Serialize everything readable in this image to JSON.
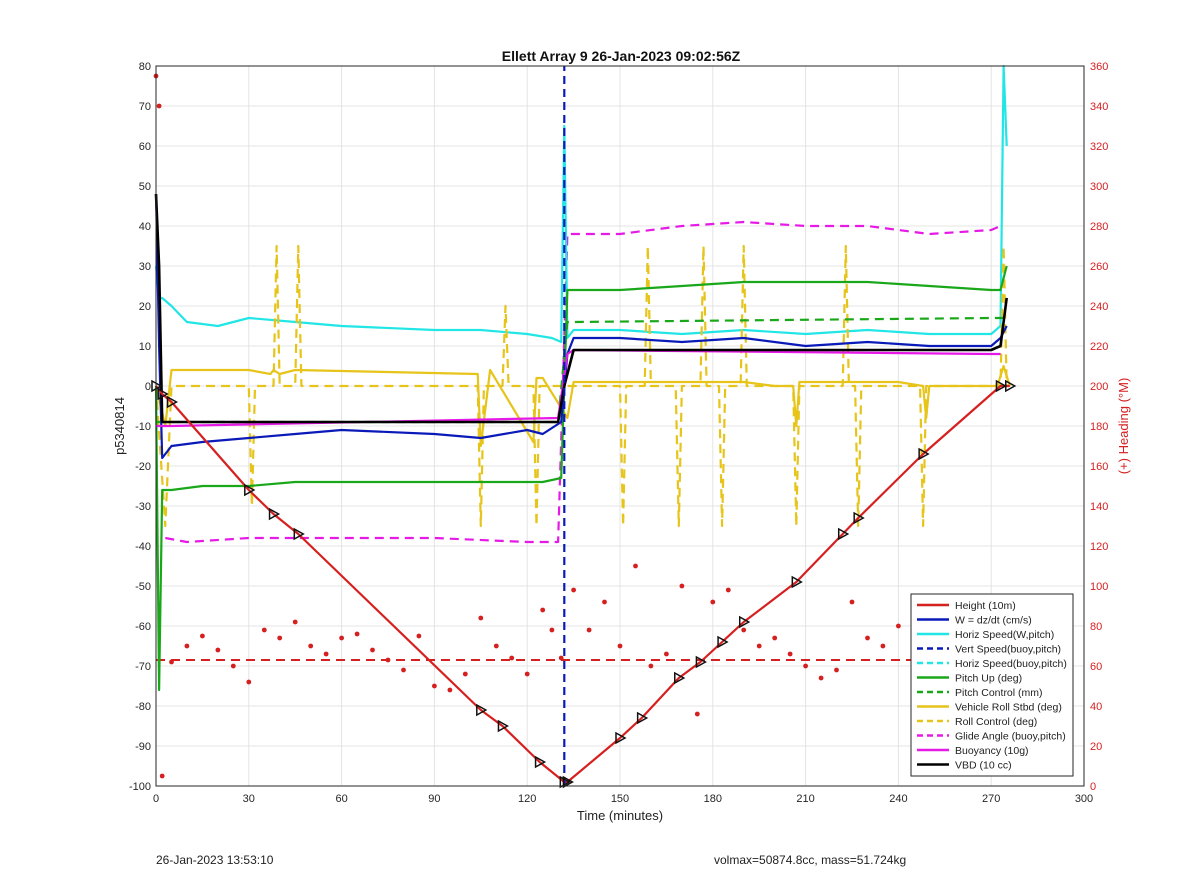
{
  "footer": {
    "left": "26-Jan-2023 13:53:10",
    "right": "volmax=50874.8cc, mass=51.724kg"
  },
  "chart_data": {
    "type": "line",
    "title": "Ellett Array 9 26-Jan-2023 09:02:56Z",
    "xlabel": "Time (minutes)",
    "ylabel": "p5340814",
    "y2label": "(+) Heading (°M)",
    "xlim": [
      0,
      300
    ],
    "ylim": [
      -100,
      80
    ],
    "y2lim": [
      0,
      360
    ],
    "xticks": [
      0,
      30,
      60,
      90,
      120,
      150,
      180,
      210,
      240,
      270,
      300
    ],
    "yticks": [
      -100,
      -90,
      -80,
      -70,
      -60,
      -50,
      -40,
      -30,
      -20,
      -10,
      0,
      10,
      20,
      30,
      40,
      50,
      60,
      70,
      80
    ],
    "y2ticks": [
      0,
      20,
      40,
      60,
      80,
      100,
      120,
      140,
      160,
      180,
      200,
      220,
      240,
      260,
      280,
      300,
      320,
      340,
      360
    ],
    "grid": true,
    "legend_position": "bottom-right",
    "colors": {
      "height": "#d62020",
      "w": "#0a1ab8",
      "horiz": "#22e6e6",
      "pitch": "#1aa81a",
      "roll": "#e6c41a",
      "glide": "#e61ae6",
      "buoyancy": "#e61ae6",
      "vbd": "#000000",
      "right_axis": "#d62020"
    },
    "legend": [
      {
        "label": "Height (10m)",
        "color": "#d62020",
        "dash": false
      },
      {
        "label": "W = dz/dt (cm/s)",
        "color": "#0a1ab8",
        "dash": false
      },
      {
        "label": "Horiz Speed(W,pitch)",
        "color": "#22e6e6",
        "dash": false
      },
      {
        "label": "Vert Speed(buoy,pitch)",
        "color": "#0a1ab8",
        "dash": true
      },
      {
        "label": "Horiz Speed(buoy,pitch)",
        "color": "#22e6e6",
        "dash": true
      },
      {
        "label": "Pitch Up (deg)",
        "color": "#1aa81a",
        "dash": false
      },
      {
        "label": "Pitch Control (mm)",
        "color": "#1aa81a",
        "dash": true
      },
      {
        "label": "Vehicle Roll Stbd (deg)",
        "color": "#e6c41a",
        "dash": false
      },
      {
        "label": "Roll Control (deg)",
        "color": "#e6c41a",
        "dash": true
      },
      {
        "label": "Glide Angle (buoy,pitch)",
        "color": "#e61ae6",
        "dash": true
      },
      {
        "label": "Buoyancy (10g)",
        "color": "#e61ae6",
        "dash": false
      },
      {
        "label": "VBD (10 cc)",
        "color": "#000000",
        "dash": false
      }
    ],
    "series": [
      {
        "key": "height",
        "x": [
          0,
          2,
          5,
          30,
          38,
          46,
          105,
          112,
          124,
          132,
          133,
          150,
          157,
          169,
          176,
          183,
          190,
          207,
          222,
          227,
          248,
          273,
          276
        ],
        "y": [
          0,
          -2,
          -4,
          -26,
          -32,
          -37,
          -81,
          -85,
          -94,
          -99,
          -99,
          -88,
          -83,
          -73,
          -69,
          -64,
          -59,
          -49,
          -37,
          -33,
          -17,
          0,
          0
        ]
      },
      {
        "key": "w",
        "x": [
          0,
          1,
          2,
          5,
          15,
          30,
          45,
          60,
          90,
          105,
          120,
          125,
          131,
          133,
          135,
          150,
          170,
          190,
          210,
          230,
          250,
          270,
          273,
          275
        ],
        "y": [
          48,
          10,
          -18,
          -15,
          -14,
          -13,
          -12,
          -11,
          -12,
          -13,
          -11,
          -12,
          -9,
          8,
          12,
          12,
          11,
          12,
          10,
          11,
          10,
          10,
          12,
          15
        ]
      },
      {
        "key": "horiz",
        "x": [
          0,
          1,
          2,
          5,
          10,
          20,
          30,
          45,
          60,
          90,
          105,
          120,
          128,
          131,
          132,
          133,
          135,
          150,
          170,
          190,
          210,
          230,
          250,
          270,
          273,
          274,
          275
        ],
        "y": [
          30,
          22,
          22,
          20,
          16,
          15,
          17,
          16,
          15,
          14,
          14,
          13,
          12,
          11,
          65,
          12,
          14,
          14,
          13,
          14,
          13,
          14,
          13,
          13,
          15,
          80,
          60
        ]
      },
      {
        "key": "pitch",
        "x": [
          0,
          1,
          2,
          5,
          15,
          30,
          45,
          60,
          90,
          105,
          120,
          125,
          131,
          133,
          135,
          150,
          170,
          190,
          210,
          230,
          250,
          270,
          273,
          275
        ],
        "y": [
          0,
          -76,
          -26,
          -26,
          -25,
          -25,
          -24,
          -24,
          -24,
          -24,
          -24,
          -24,
          -23,
          24,
          24,
          24,
          25,
          26,
          26,
          26,
          25,
          24,
          24,
          30
        ]
      },
      {
        "key": "pitch_control",
        "x": [
          0,
          5,
          130,
          133,
          135,
          270,
          275
        ],
        "y": [
          -9,
          -9,
          -9,
          16,
          16,
          17,
          17
        ],
        "dash": true
      },
      {
        "key": "roll",
        "x": [
          0,
          3,
          5,
          30,
          37,
          38,
          40,
          45,
          104,
          105,
          108,
          122,
          123,
          125,
          133,
          135,
          150,
          170,
          190,
          200,
          206,
          207,
          208,
          240,
          248,
          249,
          250,
          272,
          274,
          276
        ],
        "y": [
          0,
          -10,
          4,
          4,
          3,
          4,
          3,
          4,
          3,
          -15,
          4,
          -14,
          2,
          2,
          -8,
          1,
          1,
          1,
          1,
          0,
          0,
          -10,
          1,
          1,
          0,
          -8,
          0,
          0,
          5,
          0
        ]
      },
      {
        "key": "roll_control",
        "x": [
          0,
          3,
          5,
          30,
          31,
          32,
          38,
          39,
          40,
          45,
          46,
          47,
          104,
          105,
          106,
          112,
          113,
          114,
          122,
          123,
          124,
          133,
          135,
          150,
          151,
          152,
          158,
          159,
          160,
          168,
          169,
          170,
          176,
          177,
          178,
          182,
          183,
          184,
          189,
          190,
          191,
          206,
          207,
          208,
          222,
          223,
          224,
          226,
          227,
          228,
          247,
          248,
          249,
          273,
          274,
          275
        ],
        "y": [
          0,
          -35,
          0,
          0,
          -30,
          0,
          0,
          35,
          0,
          0,
          35,
          0,
          0,
          -35,
          0,
          0,
          20,
          0,
          0,
          -35,
          0,
          0,
          0,
          0,
          -35,
          0,
          0,
          35,
          0,
          0,
          -35,
          0,
          0,
          35,
          0,
          0,
          -35,
          0,
          0,
          35,
          0,
          0,
          -35,
          0,
          0,
          35,
          0,
          0,
          -35,
          0,
          0,
          -35,
          0,
          0,
          35,
          0
        ],
        "dash": true
      },
      {
        "key": "glide",
        "x": [
          3,
          10,
          30,
          60,
          90,
          120,
          130,
          133,
          150,
          170,
          190,
          210,
          230,
          250,
          270,
          273
        ],
        "y": [
          -38,
          -39,
          -38,
          -38,
          -38,
          -39,
          -39,
          38,
          38,
          40,
          41,
          40,
          40,
          38,
          39,
          40
        ],
        "dash": true
      },
      {
        "key": "buoyancy",
        "x": [
          0,
          5,
          130,
          133,
          135,
          270,
          273
        ],
        "y": [
          -10,
          -10,
          -8,
          8,
          9,
          8,
          8
        ]
      },
      {
        "key": "vbd",
        "x": [
          0,
          1,
          2,
          5,
          130,
          132,
          135,
          270,
          273,
          275
        ],
        "y": [
          48,
          30,
          -9,
          -9,
          -9,
          0,
          9,
          9,
          10,
          22
        ]
      },
      {
        "key": "vert_speed_buoy",
        "x": [
          132,
          132
        ],
        "y": [
          -100,
          80
        ],
        "dash": true
      }
    ],
    "heading": {
      "axis": "right",
      "mean": 63,
      "x": [
        0,
        1,
        2,
        5,
        10,
        15,
        20,
        25,
        30,
        35,
        40,
        45,
        50,
        55,
        60,
        65,
        70,
        75,
        80,
        85,
        90,
        95,
        100,
        105,
        110,
        115,
        120,
        125,
        128,
        131,
        135,
        140,
        145,
        150,
        155,
        160,
        165,
        170,
        175,
        180,
        185,
        190,
        195,
        200,
        205,
        210,
        215,
        220,
        225,
        230,
        235,
        240,
        245,
        250,
        255,
        260,
        265,
        270,
        273
      ],
      "y": [
        355,
        340,
        5,
        62,
        70,
        75,
        68,
        60,
        52,
        78,
        74,
        82,
        70,
        66,
        74,
        76,
        68,
        63,
        58,
        75,
        50,
        48,
        56,
        84,
        70,
        64,
        56,
        88,
        78,
        64,
        98,
        78,
        92,
        70,
        110,
        60,
        66,
        100,
        36,
        92,
        98,
        78,
        70,
        74,
        66,
        60,
        54,
        58,
        92,
        74,
        70,
        80,
        74,
        70,
        66,
        72,
        70,
        68,
        88
      ]
    }
  }
}
